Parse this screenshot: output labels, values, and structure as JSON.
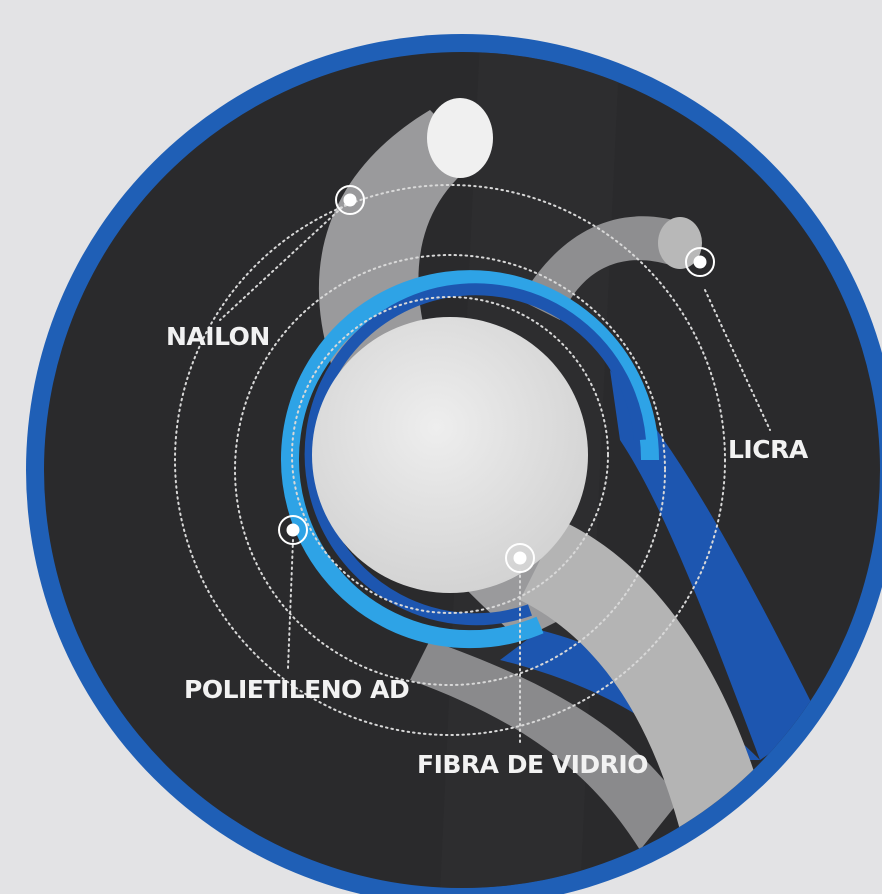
{
  "labels": {
    "nylon": "NAILON",
    "lycra": "LICRA",
    "hdpe": "POLIETILENO AD",
    "fiberglass": "FIBRA DE VIDRIO"
  }
}
